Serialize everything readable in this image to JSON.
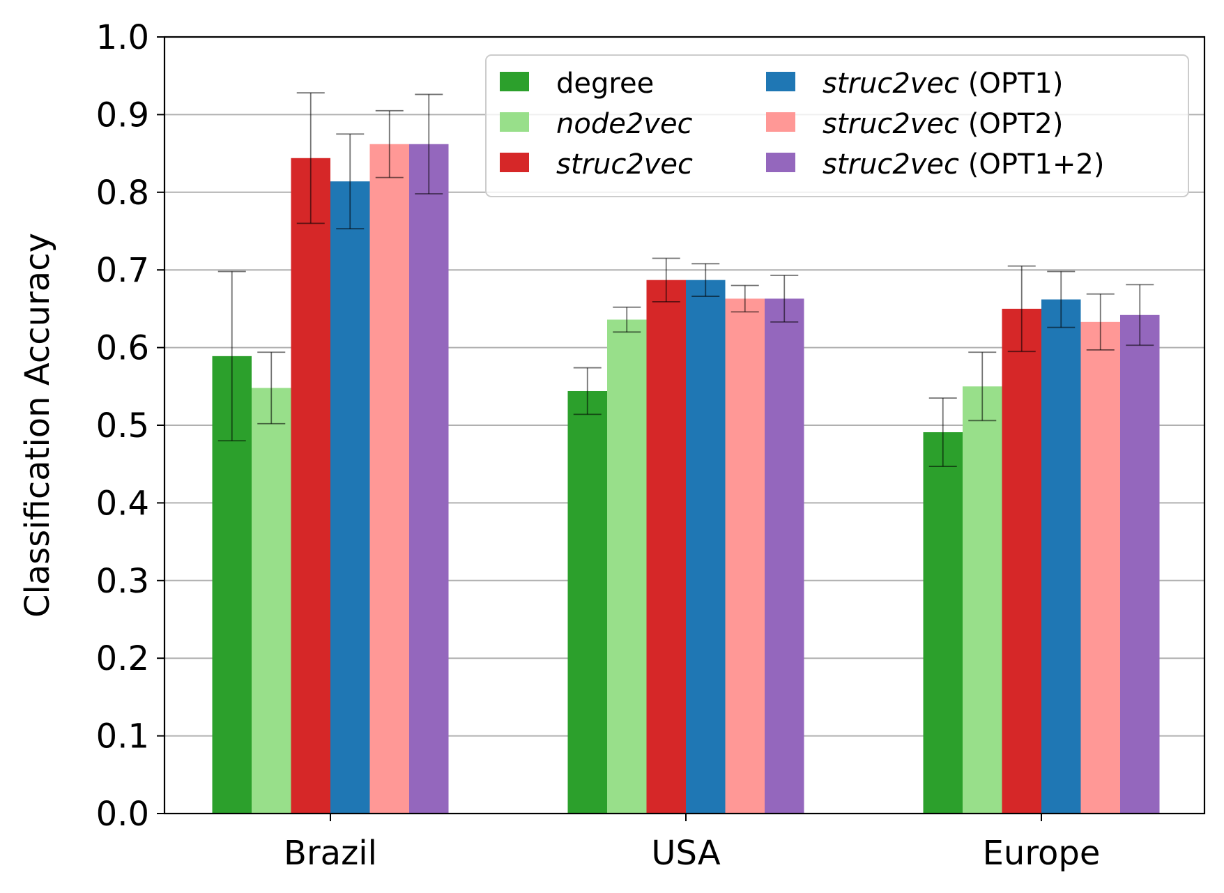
{
  "chart_data": {
    "type": "bar",
    "title": "",
    "xlabel": "",
    "ylabel": "Classification Accuracy",
    "ylim": [
      0,
      1.0
    ],
    "yticks": [
      "0.0",
      "0.1",
      "0.2",
      "0.3",
      "0.4",
      "0.5",
      "0.6",
      "0.7",
      "0.8",
      "0.9",
      "1.0"
    ],
    "grid": "horizontal",
    "legend_position": "top-right",
    "categories": [
      "Brazil",
      "USA",
      "Europe"
    ],
    "series": [
      {
        "name": "degree",
        "name_italic": "",
        "name_suffix": "",
        "color": "#2ca02c",
        "values": [
          0.589,
          0.544,
          0.491
        ],
        "errors": [
          0.109,
          0.03,
          0.044
        ]
      },
      {
        "name": "node2vec",
        "name_italic": "node2vec",
        "name_suffix": "",
        "color": "#98df8a",
        "values": [
          0.548,
          0.636,
          0.55
        ],
        "errors": [
          0.046,
          0.016,
          0.044
        ]
      },
      {
        "name": "struc2vec",
        "name_italic": "struc2vec",
        "name_suffix": "",
        "color": "#d62728",
        "values": [
          0.844,
          0.687,
          0.65
        ],
        "errors": [
          0.084,
          0.028,
          0.055
        ]
      },
      {
        "name": "struc2vec (OPT1)",
        "name_italic": "struc2vec",
        "name_suffix": " (OPT1)",
        "color": "#1f77b4",
        "values": [
          0.814,
          0.687,
          0.662
        ],
        "errors": [
          0.061,
          0.021,
          0.036
        ]
      },
      {
        "name": "struc2vec (OPT2)",
        "name_italic": "struc2vec",
        "name_suffix": " (OPT2)",
        "color": "#ff9896",
        "values": [
          0.862,
          0.663,
          0.633
        ],
        "errors": [
          0.043,
          0.017,
          0.036
        ]
      },
      {
        "name": "struc2vec (OPT1+2)",
        "name_italic": "struc2vec",
        "name_suffix": " (OPT1+2)",
        "color": "#9467bd",
        "values": [
          0.862,
          0.663,
          0.642
        ],
        "errors": [
          0.064,
          0.03,
          0.039
        ]
      }
    ]
  }
}
